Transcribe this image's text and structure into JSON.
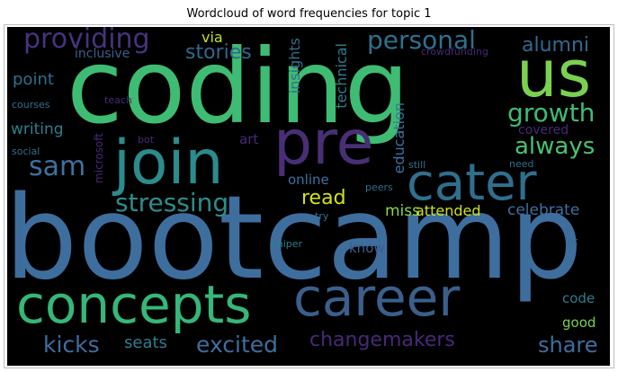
{
  "title": "Wordcloud of word frequencies for topic 1",
  "palette": {
    "background": "#000000"
  },
  "words": [
    {
      "text": "coding",
      "color": "#3fbc73"
    },
    {
      "text": "bootcamp",
      "color": "#3e6e9e"
    },
    {
      "text": "us",
      "color": "#7ad151"
    },
    {
      "text": "pre",
      "color": "#482f75"
    },
    {
      "text": "join",
      "color": "#2c8b8c"
    },
    {
      "text": "cater",
      "color": "#2f6f8e"
    },
    {
      "text": "concepts",
      "color": "#35b779"
    },
    {
      "text": "career",
      "color": "#3b5f8c"
    },
    {
      "text": "providing",
      "color": "#46337e"
    },
    {
      "text": "personal",
      "color": "#2f708e"
    },
    {
      "text": "alumni",
      "color": "#32698d"
    },
    {
      "text": "growth",
      "color": "#3fbc73"
    },
    {
      "text": "always",
      "color": "#4ac26d"
    },
    {
      "text": "sam",
      "color": "#3e71a0"
    },
    {
      "text": "stressing",
      "color": "#2b8e8c"
    },
    {
      "text": "read",
      "color": "#d2e21b"
    },
    {
      "text": "miss",
      "color": "#8fd744"
    },
    {
      "text": "attended",
      "color": "#cde11d"
    },
    {
      "text": "celebrate",
      "color": "#3e6e9e"
    },
    {
      "text": "changemakers",
      "color": "#482878"
    },
    {
      "text": "kicks",
      "color": "#3e6e9e"
    },
    {
      "text": "seats",
      "color": "#2c7e8e"
    },
    {
      "text": "excited",
      "color": "#3e6e9e"
    },
    {
      "text": "share",
      "color": "#3e6e9e"
    },
    {
      "text": "via",
      "color": "#c0df25"
    },
    {
      "text": "stories",
      "color": "#31688e"
    },
    {
      "text": "inclusive",
      "color": "#3b5f8c"
    },
    {
      "text": "point",
      "color": "#2f6f8e"
    },
    {
      "text": "writing",
      "color": "#2c7e8e"
    },
    {
      "text": "insights",
      "color": "#2f708e"
    },
    {
      "text": "technical",
      "color": "#2c7e8e"
    },
    {
      "text": "education",
      "color": "#3e71a0"
    },
    {
      "text": "online",
      "color": "#3e71a0"
    },
    {
      "text": "art",
      "color": "#482878"
    },
    {
      "text": "covered",
      "color": "#482878"
    },
    {
      "text": "know",
      "color": "#3b5f8c"
    },
    {
      "text": "code",
      "color": "#2c7e8e"
    },
    {
      "text": "good",
      "color": "#7ad151"
    },
    {
      "text": "microsoft",
      "color": "#482878"
    },
    {
      "text": "teach",
      "color": "#482878"
    },
    {
      "text": "bot",
      "color": "#482878"
    },
    {
      "text": "courses",
      "color": "#2f6f8e"
    },
    {
      "text": "social",
      "color": "#2f6f8e"
    },
    {
      "text": "crowdfunding",
      "color": "#482878"
    },
    {
      "text": "need",
      "color": "#2f6f8e"
    },
    {
      "text": "still",
      "color": "#2f6f8e"
    },
    {
      "text": "peers",
      "color": "#2f6f8e"
    },
    {
      "text": "try",
      "color": "#2f6f8e"
    },
    {
      "text": "lot",
      "color": "#2f6f8e"
    },
    {
      "text": "sniper",
      "color": "#2c7e8e"
    }
  ]
}
